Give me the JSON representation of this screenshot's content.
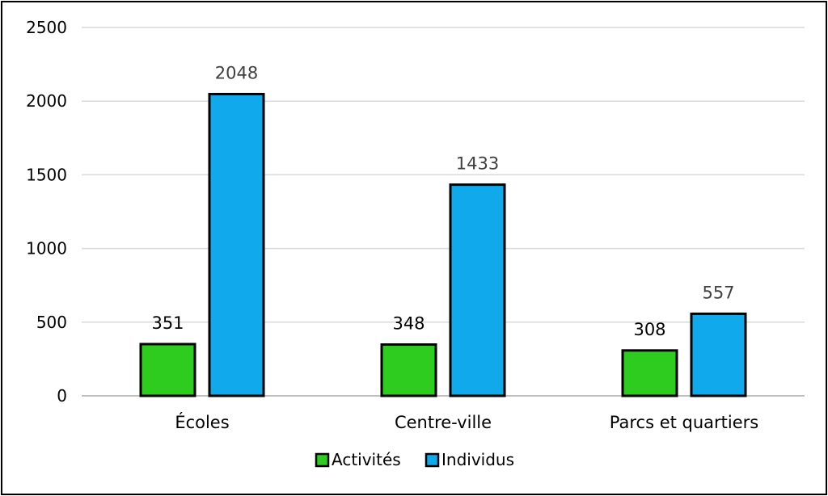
{
  "chart_data": {
    "type": "bar",
    "title": "",
    "xlabel": "",
    "ylabel": "",
    "categories": [
      "Écoles",
      "Centre-ville",
      "Parcs et quartiers"
    ],
    "series": [
      {
        "name": "Activités",
        "color": "#2ecc1f",
        "values": [
          351,
          348,
          308
        ]
      },
      {
        "name": "Individus",
        "color": "#10aaec",
        "values": [
          2048,
          1433,
          557
        ]
      }
    ],
    "ylim": [
      0,
      2500
    ],
    "yticks": [
      0,
      500,
      1000,
      1500,
      2000,
      2500
    ],
    "grid": true,
    "data_labels": true,
    "legend": "bottom"
  }
}
